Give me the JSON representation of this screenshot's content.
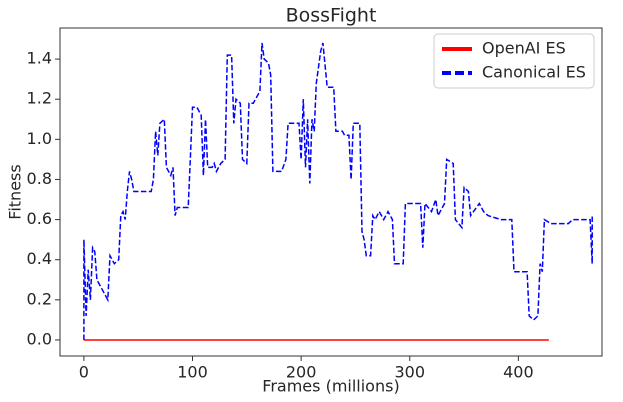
{
  "chart_data": {
    "type": "line",
    "title": "BossFight",
    "x_label": "Frames (millions)",
    "y_label": "Fitness",
    "xlim": [
      -22,
      477
    ],
    "ylim": [
      -0.08,
      1.555
    ],
    "xticks": [
      0,
      100,
      200,
      300,
      400
    ],
    "yticks": [
      {
        "value": 0,
        "label": "0.0"
      },
      0.2,
      0.4,
      0.6,
      0.8,
      {
        "value": 1,
        "label": "1.0"
      },
      1.2,
      1.4
    ],
    "legend": "upper right",
    "series": [
      {
        "name": "OpenAI ES",
        "color": "#ff0000",
        "dash": false,
        "x": [
          0,
          428
        ],
        "values": [
          0,
          0
        ]
      },
      {
        "name": "Canonical ES",
        "color": "#0000ff",
        "dash": true,
        "x": [
          0,
          0,
          2,
          4,
          6,
          8,
          10,
          12,
          22,
          24,
          28,
          32,
          34,
          36,
          38,
          40,
          42,
          44,
          46,
          62,
          64,
          66,
          68,
          70,
          74,
          76,
          80,
          82,
          84,
          86,
          96,
          98,
          100,
          104,
          108,
          110,
          112,
          114,
          118,
          120,
          122,
          126,
          130,
          132,
          136,
          138,
          140,
          144,
          146,
          150,
          152,
          156,
          158,
          162,
          164,
          166,
          170,
          172,
          174,
          182,
          186,
          188,
          198,
          200,
          202,
          204,
          206,
          208,
          210,
          212,
          214,
          218,
          220,
          224,
          230,
          232,
          238,
          240,
          244,
          246,
          248,
          254,
          256,
          258,
          260,
          264,
          266,
          268,
          272,
          276,
          280,
          284,
          286,
          294,
          296,
          310,
          312,
          314,
          320,
          324,
          326,
          332,
          334,
          340,
          342,
          348,
          350,
          354,
          356,
          364,
          368,
          372,
          384,
          394,
          396,
          408,
          410,
          414,
          418,
          420,
          422,
          424,
          430,
          446,
          450,
          466,
          468,
          468
        ],
        "values": [
          0,
          0.5,
          0.12,
          0.35,
          0.2,
          0.46,
          0.44,
          0.3,
          0.2,
          0.42,
          0.38,
          0.4,
          0.62,
          0.64,
          0.6,
          0.74,
          0.84,
          0.8,
          0.74,
          0.74,
          0.8,
          1.04,
          0.92,
          1.08,
          1.1,
          0.86,
          0.82,
          0.86,
          0.62,
          0.66,
          0.66,
          0.9,
          1.16,
          1.16,
          1.12,
          0.82,
          1.1,
          0.86,
          0.86,
          0.88,
          0.84,
          0.88,
          0.9,
          1.42,
          1.42,
          1.08,
          1.2,
          1.18,
          0.9,
          0.88,
          1.18,
          1.18,
          1.2,
          1.24,
          1.48,
          1.4,
          1.38,
          1.32,
          0.84,
          0.84,
          0.9,
          1.08,
          1.08,
          0.9,
          1.2,
          0.86,
          1.1,
          0.78,
          1.1,
          1.04,
          1.28,
          1.44,
          1.48,
          1.26,
          1.26,
          1.04,
          1.04,
          1.02,
          1.02,
          0.8,
          1.08,
          1.08,
          0.54,
          0.5,
          0.42,
          0.42,
          0.62,
          0.6,
          0.64,
          0.6,
          0.64,
          0.6,
          0.38,
          0.38,
          0.68,
          0.68,
          0.46,
          0.68,
          0.64,
          0.7,
          0.62,
          0.68,
          0.9,
          0.88,
          0.6,
          0.56,
          0.76,
          0.74,
          0.62,
          0.68,
          0.64,
          0.62,
          0.6,
          0.6,
          0.34,
          0.34,
          0.12,
          0.1,
          0.12,
          0.38,
          0.34,
          0.6,
          0.58,
          0.58,
          0.6,
          0.6,
          0.38,
          0.62
        ]
      }
    ]
  }
}
